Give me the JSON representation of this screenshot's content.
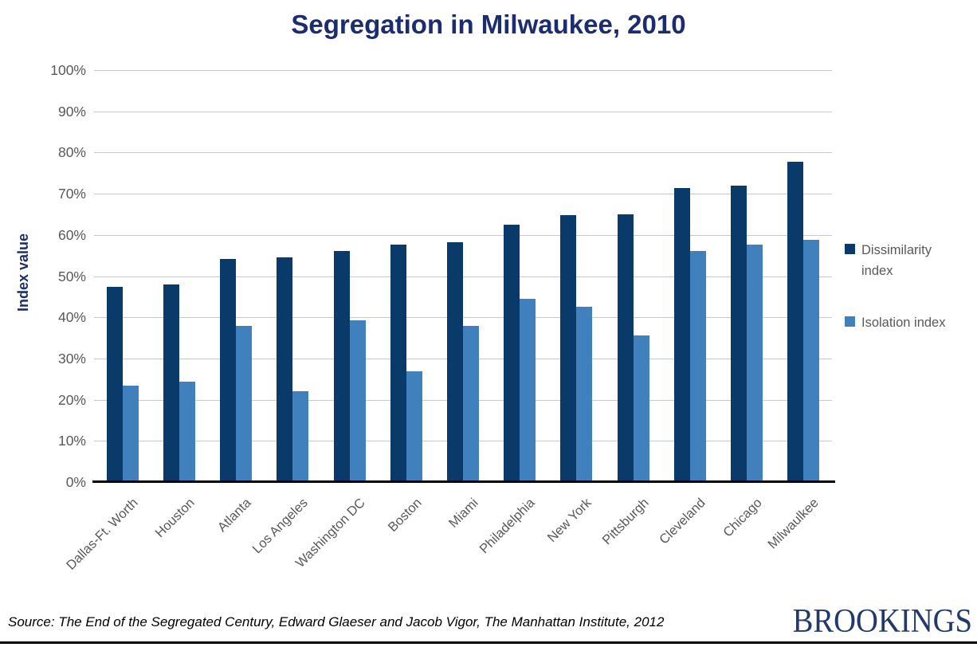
{
  "chart_data": {
    "type": "bar",
    "title": "Segregation in Milwaukee, 2010",
    "ylabel": "Index value",
    "xlabel": "",
    "ylim": [
      0,
      100
    ],
    "y_ticks": [
      "100%",
      "90%",
      "80%",
      "70%",
      "60%",
      "50%",
      "40%",
      "30%",
      "20%",
      "10%",
      "0%"
    ],
    "grid": true,
    "legend_position": "right",
    "categories": [
      "Dallas-Ft. Worth",
      "Houston",
      "Atlanta",
      "Los Angeles",
      "Washington DC",
      "Boston",
      "Miami",
      "Philadelphia",
      "New York",
      "Pittsburgh",
      "Cleveland",
      "Chicago",
      "Milwaulkee"
    ],
    "series": [
      {
        "name": "Dissimilarity index",
        "color": "#0A3A69",
        "values": [
          47.3,
          47.7,
          54.0,
          54.3,
          56.0,
          57.4,
          58.0,
          62.3,
          64.6,
          64.9,
          71.2,
          71.8,
          77.5
        ]
      },
      {
        "name": "Isolation index",
        "color": "#4080BD",
        "values": [
          23.3,
          24.2,
          37.7,
          21.9,
          39.0,
          26.7,
          37.7,
          44.4,
          42.3,
          35.5,
          56.0,
          57.4,
          58.6
        ]
      }
    ]
  },
  "colors": {
    "title": "#1B2C6F",
    "axis_text": "#595959",
    "gridline": "#C8C8C8",
    "axis_line": "#000000",
    "logo": "#23396B"
  },
  "footer": {
    "source": "Source: The End of the Segregated Century, Edward Glaeser and Jacob Vigor, The Manhattan Institute, 2012",
    "logo": "BROOKINGS"
  }
}
